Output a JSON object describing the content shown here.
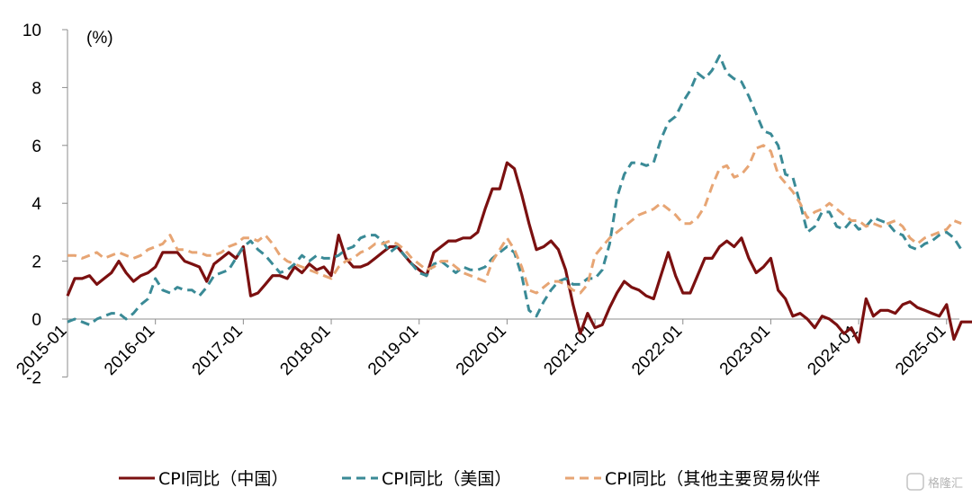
{
  "chart_data": {
    "type": "line",
    "ylabel": "(%)",
    "ylim": [
      -2,
      10
    ],
    "yticks": [
      "-2",
      "0",
      "2",
      "4",
      "6",
      "8",
      "10"
    ],
    "xticks": [
      "2015-01",
      "2016-01",
      "2017-01",
      "2018-01",
      "2019-01",
      "2020-01",
      "2021-01",
      "2022-01",
      "2023-01",
      "2024-01",
      "2025-01"
    ],
    "x_start": "2015-01",
    "legend_position": "bottom",
    "grid": false,
    "series": [
      {
        "name": "CPI同比（中国）",
        "color": "#7b1010",
        "style": "solid",
        "values": [
          0.8,
          1.4,
          1.4,
          1.5,
          1.2,
          1.4,
          1.6,
          2.0,
          1.6,
          1.3,
          1.5,
          1.6,
          1.8,
          2.3,
          2.3,
          2.3,
          2.0,
          1.9,
          1.8,
          1.3,
          1.9,
          2.1,
          2.3,
          2.1,
          2.5,
          0.8,
          0.9,
          1.2,
          1.5,
          1.5,
          1.4,
          1.8,
          1.6,
          1.9,
          1.7,
          1.8,
          1.5,
          2.9,
          2.1,
          1.8,
          1.8,
          1.9,
          2.1,
          2.3,
          2.5,
          2.5,
          2.2,
          1.9,
          1.7,
          1.5,
          2.3,
          2.5,
          2.7,
          2.7,
          2.8,
          2.8,
          3.0,
          3.8,
          4.5,
          4.5,
          5.4,
          5.2,
          4.3,
          3.3,
          2.4,
          2.5,
          2.7,
          2.4,
          1.7,
          0.5,
          -0.5,
          0.2,
          -0.3,
          -0.2,
          0.4,
          0.9,
          1.3,
          1.1,
          1.0,
          0.8,
          0.7,
          1.5,
          2.3,
          1.5,
          0.9,
          0.9,
          1.5,
          2.1,
          2.1,
          2.5,
          2.7,
          2.5,
          2.8,
          2.1,
          1.6,
          1.8,
          2.1,
          1.0,
          0.7,
          0.1,
          0.2,
          0.0,
          -0.3,
          0.1,
          0.0,
          -0.2,
          -0.5,
          -0.3,
          -0.8,
          0.7,
          0.1,
          0.3,
          0.3,
          0.2,
          0.5,
          0.6,
          0.4,
          0.3,
          0.2,
          0.1,
          0.5,
          -0.7,
          -0.1,
          -0.1,
          -0.1
        ]
      },
      {
        "name": "CPI同比（美国）",
        "color": "#3a8a96",
        "style": "dashed",
        "values": [
          -0.1,
          0.0,
          -0.1,
          -0.2,
          0.0,
          0.1,
          0.2,
          0.2,
          0.0,
          0.2,
          0.5,
          0.7,
          1.4,
          1.0,
          0.9,
          1.1,
          1.0,
          1.0,
          0.8,
          1.1,
          1.5,
          1.6,
          1.7,
          2.1,
          2.5,
          2.7,
          2.4,
          2.2,
          1.9,
          1.6,
          1.7,
          1.9,
          2.2,
          2.0,
          2.2,
          2.1,
          2.1,
          2.2,
          2.4,
          2.5,
          2.8,
          2.9,
          2.9,
          2.7,
          2.3,
          2.5,
          2.2,
          1.9,
          1.6,
          1.5,
          1.9,
          2.0,
          1.8,
          1.6,
          1.8,
          1.7,
          1.7,
          1.8,
          2.1,
          2.3,
          2.5,
          2.3,
          1.5,
          0.3,
          0.1,
          0.6,
          1.0,
          1.3,
          1.4,
          1.2,
          1.2,
          1.4,
          1.4,
          1.7,
          2.6,
          4.2,
          5.0,
          5.4,
          5.4,
          5.3,
          5.4,
          6.2,
          6.8,
          7.0,
          7.5,
          7.9,
          8.5,
          8.3,
          8.6,
          9.1,
          8.5,
          8.3,
          8.2,
          7.7,
          7.1,
          6.5,
          6.4,
          6.0,
          5.0,
          4.9,
          4.0,
          3.0,
          3.2,
          3.7,
          3.7,
          3.2,
          3.1,
          3.4,
          3.1,
          3.2,
          3.5,
          3.4,
          3.3,
          3.0,
          2.9,
          2.5,
          2.4,
          2.6,
          2.7,
          2.9,
          3.0,
          2.8,
          2.4
        ]
      },
      {
        "name": "CPI同比（其他主要贸易伙伴",
        "color": "#e7a574",
        "style": "dashed",
        "values": [
          2.2,
          2.2,
          2.1,
          2.2,
          2.3,
          2.1,
          2.2,
          2.3,
          2.2,
          2.1,
          2.2,
          2.4,
          2.5,
          2.6,
          2.9,
          2.4,
          2.4,
          2.3,
          2.3,
          2.2,
          2.2,
          2.3,
          2.5,
          2.6,
          2.8,
          2.8,
          2.7,
          2.9,
          2.6,
          2.2,
          2.0,
          1.9,
          1.8,
          1.7,
          1.6,
          1.5,
          1.4,
          1.8,
          2.0,
          2.1,
          2.3,
          2.4,
          2.6,
          2.6,
          2.7,
          2.6,
          2.4,
          2.1,
          1.9,
          1.7,
          1.8,
          2.0,
          2.0,
          1.8,
          1.6,
          1.5,
          1.4,
          1.3,
          2.0,
          2.4,
          2.8,
          2.4,
          1.8,
          1.0,
          0.9,
          1.1,
          1.3,
          1.3,
          1.2,
          1.0,
          0.9,
          1.2,
          2.2,
          2.5,
          2.8,
          3.0,
          3.2,
          3.4,
          3.6,
          3.7,
          3.8,
          4.0,
          3.8,
          3.6,
          3.3,
          3.3,
          3.5,
          3.9,
          4.6,
          5.2,
          5.3,
          4.9,
          5.0,
          5.3,
          5.9,
          6.0,
          5.8,
          5.0,
          4.7,
          4.4,
          4.0,
          3.5,
          3.7,
          3.8,
          4.0,
          3.8,
          3.6,
          3.4,
          3.4,
          3.2,
          3.3,
          3.2,
          3.3,
          3.4,
          3.2,
          2.8,
          2.6,
          2.8,
          2.9,
          3.0,
          3.1,
          3.4,
          3.3
        ]
      }
    ]
  },
  "watermark": {
    "text": "格隆汇"
  }
}
